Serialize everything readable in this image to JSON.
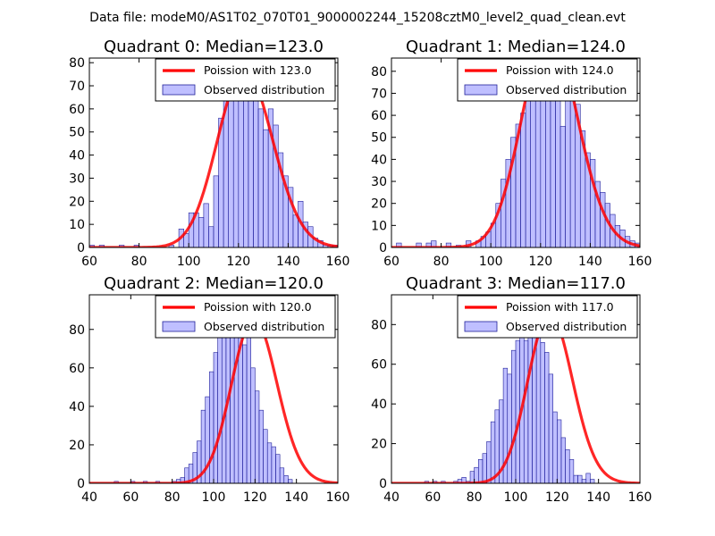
{
  "figure": {
    "suptitle": "Data file: modeM0/AS1T02_070T01_9000002244_15208cztM0_level2_quad_clean.evt"
  },
  "colors": {
    "hist_fill": "#8080ff",
    "hist_edge": "#20209a",
    "curve": "#ff0000",
    "axis": "#000000",
    "legend_edge": "#000000",
    "background": "#ffffff"
  },
  "chart_data": [
    {
      "type": "bar",
      "title": "Quadrant 0: Median=123.0",
      "xlim": [
        60,
        160
      ],
      "ylim": [
        0,
        82
      ],
      "xticks": [
        60,
        80,
        100,
        120,
        140,
        160
      ],
      "yticks": [
        0,
        10,
        20,
        30,
        40,
        50,
        60,
        70,
        80
      ],
      "legend": {
        "position": "top-right",
        "entries": [
          "Poission with 123.0",
          "Observed distribution"
        ]
      },
      "poisson_mean": 123.0,
      "bin_start": 60,
      "bin_width": 2,
      "values": [
        1,
        0,
        1,
        0,
        0,
        0,
        1,
        0,
        0,
        1,
        0,
        0,
        0,
        0,
        0,
        0,
        1,
        0,
        8,
        6,
        15,
        15,
        13,
        19,
        9,
        31,
        56,
        64,
        74,
        76,
        75,
        79,
        72,
        65,
        60,
        51,
        60,
        53,
        41,
        31,
        26,
        14,
        20,
        11,
        9,
        4,
        3,
        1,
        1,
        1
      ]
    },
    {
      "type": "bar",
      "title": "Quadrant 1: Median=124.0",
      "xlim": [
        60,
        160
      ],
      "ylim": [
        0,
        86
      ],
      "xticks": [
        60,
        80,
        100,
        120,
        140,
        160
      ],
      "yticks": [
        0,
        10,
        20,
        30,
        40,
        50,
        60,
        70,
        80
      ],
      "legend": {
        "position": "top-right",
        "entries": [
          "Poission with 124.0",
          "Observed distribution"
        ]
      },
      "poisson_mean": 124.0,
      "bin_start": 60,
      "bin_width": 2,
      "values": [
        0,
        2,
        0,
        0,
        0,
        2,
        0,
        2,
        3,
        0,
        0,
        2,
        0,
        1,
        0,
        3,
        0,
        3,
        5,
        7,
        11,
        20,
        31,
        40,
        50,
        56,
        61,
        73,
        79,
        70,
        73,
        79,
        81,
        82,
        55,
        82,
        74,
        65,
        53,
        43,
        40,
        30,
        25,
        20,
        15,
        10,
        8,
        5,
        3,
        2
      ]
    },
    {
      "type": "bar",
      "title": "Quadrant 2: Median=120.0",
      "xlim": [
        40,
        160
      ],
      "ylim": [
        0,
        98
      ],
      "xticks": [
        40,
        60,
        80,
        100,
        120,
        140,
        160
      ],
      "yticks": [
        0,
        20,
        40,
        60,
        80
      ],
      "legend": {
        "position": "top-right",
        "entries": [
          "Poission with 120.0",
          "Observed distribution"
        ]
      },
      "poisson_mean": 120.0,
      "bin_start": 52,
      "bin_width": 2,
      "values": [
        1,
        0,
        0,
        0,
        1,
        0,
        0,
        1,
        0,
        0,
        1,
        0,
        0,
        0,
        1,
        2,
        3,
        8,
        10,
        16,
        22,
        38,
        45,
        58,
        68,
        76,
        80,
        88,
        84,
        94,
        85,
        72,
        79,
        60,
        48,
        38,
        28,
        21,
        19,
        15,
        8,
        4,
        2
      ]
    },
    {
      "type": "bar",
      "title": "Quadrant 3: Median=117.0",
      "xlim": [
        40,
        160
      ],
      "ylim": [
        0,
        95
      ],
      "xticks": [
        40,
        60,
        80,
        100,
        120,
        140,
        160
      ],
      "yticks": [
        0,
        20,
        40,
        60,
        80
      ],
      "legend": {
        "position": "top-right",
        "entries": [
          "Poission with 117.0",
          "Observed distribution"
        ]
      },
      "poisson_mean": 117.0,
      "bin_start": 56,
      "bin_width": 2,
      "values": [
        1,
        0,
        1,
        0,
        1,
        0,
        0,
        1,
        2,
        3,
        1,
        6,
        8,
        12,
        15,
        21,
        31,
        37,
        42,
        58,
        55,
        67,
        72,
        79,
        72,
        83,
        80,
        82,
        71,
        66,
        55,
        36,
        32,
        23,
        17,
        12,
        4,
        4,
        2,
        5,
        2
      ]
    }
  ]
}
